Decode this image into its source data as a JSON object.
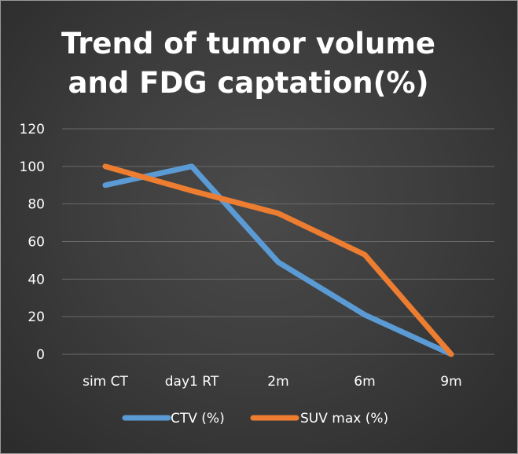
{
  "chart_data": {
    "type": "line",
    "title": "Trend of tumor volume\nand FDG captation(%)",
    "categories": [
      "sim CT",
      "day1 RT",
      "2m",
      "6m",
      "9m"
    ],
    "series": [
      {
        "name": "CTV (%)",
        "color": "#5b9bd5",
        "values": [
          90,
          100,
          49,
          21,
          0
        ]
      },
      {
        "name": "SUV max (%)",
        "color": "#ed7d31",
        "values": [
          100,
          87,
          75,
          53,
          0
        ]
      }
    ],
    "ylim": [
      0,
      120
    ],
    "yticks": [
      "0",
      "20",
      "40",
      "60",
      "80",
      "100",
      "120"
    ],
    "grid": true,
    "legend": "bottom",
    "xlabel": "",
    "ylabel": ""
  }
}
